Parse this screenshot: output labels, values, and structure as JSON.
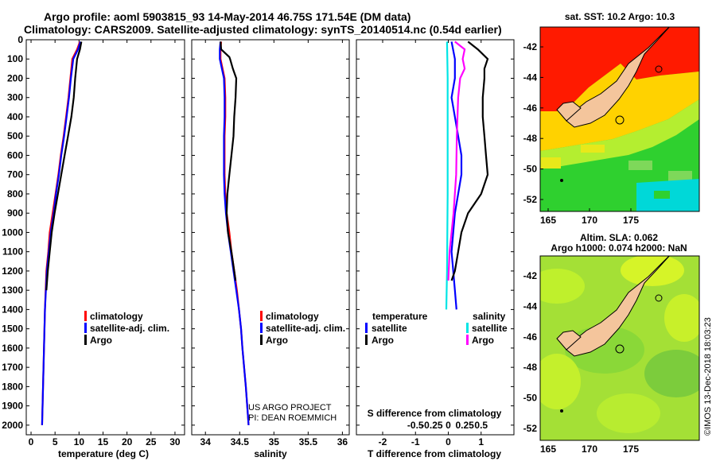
{
  "title_line1": "Argo profile: aoml 5903815_93 14-May-2014 46.75S 171.54E (DM data)",
  "title_line2": "Climatology: CARS2009. Satellite-adjusted climatology: synTS_20140514.nc (0.54d earlier)",
  "colors": {
    "climatology": "#ff0000",
    "satellite": "#0000ff",
    "argo": "#000000",
    "sal_satellite": "#00e5e5",
    "sal_argo": "#ff00ff"
  },
  "chart_data": [
    {
      "type": "line",
      "name": "temperature",
      "xlabel": "temperature (deg C)",
      "xlim": [
        -1,
        32
      ],
      "xticks": [
        "0",
        "5",
        "10",
        "15",
        "20",
        "25",
        "30"
      ],
      "ylim": [
        0,
        2050
      ],
      "yticks": [
        "0",
        "100",
        "200",
        "300",
        "400",
        "500",
        "600",
        "700",
        "800",
        "900",
        "1000",
        "1100",
        "1200",
        "1300",
        "1400",
        "1500",
        "1600",
        "1700",
        "1800",
        "1900",
        "2000"
      ],
      "legend": [
        "climatology",
        "satellite-adj. clim.",
        "Argo"
      ],
      "series": [
        {
          "name": "climatology",
          "depth": [
            10,
            50,
            100,
            200,
            300,
            400,
            500,
            600,
            700,
            800,
            900,
            1000,
            1100,
            1200,
            1400,
            1600,
            1800,
            2000
          ],
          "values": [
            10.2,
            9.6,
            8.6,
            8.2,
            7.8,
            7.3,
            6.8,
            6.2,
            5.7,
            5.1,
            4.5,
            3.9,
            3.6,
            3.2,
            2.9,
            2.7,
            2.5,
            2.3
          ]
        },
        {
          "name": "satellite-adj. clim.",
          "depth": [
            10,
            50,
            100,
            200,
            300,
            400,
            500,
            600,
            700,
            800,
            900,
            1000,
            1100,
            1200,
            1400,
            1600,
            1800,
            2000
          ],
          "values": [
            10.3,
            9.8,
            8.8,
            8.3,
            7.9,
            7.4,
            6.9,
            6.3,
            5.8,
            5.2,
            4.7,
            4.1,
            3.7,
            3.3,
            2.9,
            2.7,
            2.5,
            2.3
          ]
        },
        {
          "name": "Argo",
          "depth": [
            10,
            50,
            100,
            200,
            300,
            400,
            500,
            600,
            700,
            800,
            900,
            1000,
            1100,
            1200,
            1300
          ],
          "values": [
            10.5,
            10.2,
            9.6,
            9.2,
            8.9,
            8.4,
            7.7,
            7.0,
            6.3,
            5.6,
            4.9,
            4.3,
            3.9,
            3.5,
            3.2
          ]
        }
      ]
    },
    {
      "type": "line",
      "name": "salinity",
      "xlabel": "salinity",
      "xlim": [
        33.8,
        36.1
      ],
      "xticks": [
        "34",
        "34.5",
        "35",
        "35.5",
        "36"
      ],
      "ylim": [
        0,
        2050
      ],
      "legend": [
        "climatology",
        "satellite-adj. clim.",
        "Argo"
      ],
      "annotation": [
        "US ARGO PROJECT",
        "PI: DEAN ROEMMICH"
      ],
      "series": [
        {
          "name": "climatology",
          "depth": [
            10,
            50,
            100,
            200,
            300,
            400,
            500,
            600,
            700,
            800,
            900,
            1000,
            1100,
            1200,
            1300,
            1400,
            1500,
            1600,
            1800,
            2000
          ],
          "values": [
            34.23,
            34.22,
            34.22,
            34.28,
            34.29,
            34.29,
            34.28,
            34.28,
            34.28,
            34.29,
            34.31,
            34.35,
            34.38,
            34.42,
            34.46,
            34.49,
            34.52,
            34.54,
            34.59,
            34.63
          ]
        },
        {
          "name": "satellite-adj. clim.",
          "depth": [
            10,
            50,
            100,
            200,
            300,
            400,
            500,
            600,
            700,
            800,
            900,
            1000,
            1100,
            1200,
            1300,
            1400,
            1500,
            1600,
            1800,
            2000
          ],
          "values": [
            34.22,
            34.21,
            34.21,
            34.27,
            34.28,
            34.28,
            34.27,
            34.27,
            34.27,
            34.28,
            34.3,
            34.33,
            34.37,
            34.41,
            34.45,
            34.49,
            34.52,
            34.54,
            34.59,
            34.63
          ]
        },
        {
          "name": "Argo",
          "depth": [
            10,
            50,
            90,
            100,
            150,
            200,
            300,
            400,
            500,
            600,
            700,
            800,
            900,
            1000,
            1100,
            1200,
            1250
          ],
          "values": [
            34.22,
            34.23,
            34.35,
            34.36,
            34.4,
            34.45,
            34.44,
            34.42,
            34.41,
            34.38,
            34.35,
            34.32,
            34.31,
            34.33,
            34.38,
            34.42,
            34.44
          ]
        }
      ]
    },
    {
      "type": "line",
      "name": "difference",
      "xlabel": "T difference from climatology",
      "xlabel_top": "S difference from climatology",
      "xlim": [
        -2.8,
        2.0
      ],
      "xticks": [
        "-2",
        "-1",
        "0",
        "1"
      ],
      "xticks_top": [
        "-0.5",
        "-0.25",
        "0",
        "0.25",
        "0.5"
      ],
      "ylim": [
        0,
        2050
      ],
      "legend_temperature": {
        "header": "temperature",
        "items": [
          "satellite",
          "Argo"
        ]
      },
      "legend_salinity": {
        "header": "salinity",
        "items": [
          "satellite",
          "Argo"
        ]
      },
      "series": [
        {
          "name": "T satellite",
          "depth": [
            10,
            100,
            200,
            300,
            400,
            500,
            600,
            700,
            800,
            900,
            1000,
            1100,
            1200,
            1300,
            1400
          ],
          "values": [
            0.1,
            0.2,
            0.2,
            0.1,
            0.2,
            0.3,
            0.4,
            0.4,
            0.3,
            0.2,
            0.15,
            0.1,
            0.15,
            0.2,
            0.25
          ]
        },
        {
          "name": "T Argo",
          "depth": [
            10,
            50,
            100,
            150,
            200,
            300,
            400,
            500,
            600,
            700,
            800,
            900,
            1000,
            1100,
            1200,
            1250
          ],
          "values": [
            0.6,
            0.9,
            1.2,
            1.1,
            1.1,
            1.05,
            1.05,
            1.1,
            1.15,
            1.2,
            1.0,
            0.6,
            0.4,
            0.3,
            0.2,
            0.1
          ]
        },
        {
          "name": "S satellite",
          "depth": [
            10,
            100,
            200,
            400,
            600,
            800,
            1000,
            1200,
            1400
          ],
          "values": [
            -0.02,
            -0.015,
            -0.01,
            -0.01,
            -0.01,
            -0.01,
            -0.015,
            -0.02,
            -0.03
          ]
        },
        {
          "name": "S Argo",
          "depth": [
            10,
            50,
            100,
            150,
            200,
            300,
            500,
            700,
            900,
            1100,
            1250
          ],
          "values": [
            0.1,
            0.25,
            0.22,
            0.25,
            0.18,
            0.15,
            0.13,
            0.12,
            0.08,
            0.02,
            0.0
          ]
        }
      ]
    },
    {
      "type": "heatmap",
      "name": "sst-map",
      "title": "sat. SST: 10.2 Argo: 10.3",
      "xticks": [
        "165",
        "170",
        "175"
      ],
      "yticks": [
        "-42",
        "-44",
        "-46",
        "-48",
        "-50",
        "-52"
      ]
    },
    {
      "type": "heatmap",
      "name": "sla-map",
      "title_line1": "Altim. SLA: 0.062",
      "title_line2": "Argo h1000: 0.074 h2000: NaN",
      "xticks": [
        "165",
        "170",
        "175"
      ],
      "yticks": [
        "-42",
        "-44",
        "-46",
        "-48",
        "-50",
        "-52"
      ]
    }
  ],
  "credit": "©IMOS 13-Dec-2018 18:03:23"
}
